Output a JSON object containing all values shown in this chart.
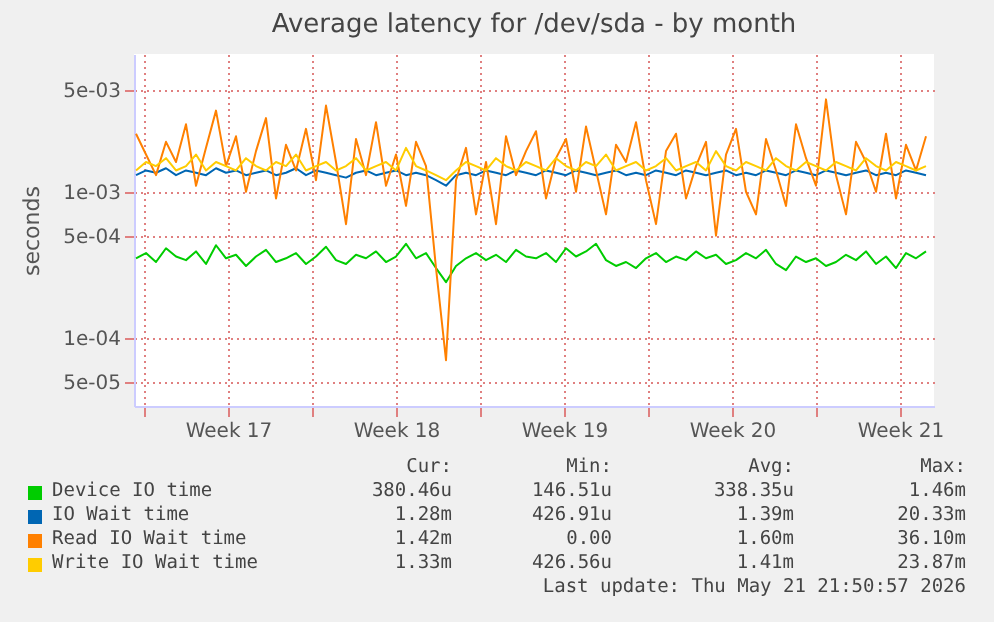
{
  "chart_data": {
    "type": "line",
    "title": "Average latency for /dev/sda - by month",
    "ylabel": "seconds",
    "x": [
      "2026-04-19T16:00",
      "2026-04-20T02:00",
      "2026-04-20T12:00",
      "2026-04-20T22:00",
      "2026-04-21T08:00",
      "2026-04-21T18:00",
      "2026-04-22T04:00",
      "2026-04-22T14:00",
      "2026-04-23T00:00",
      "2026-04-23T10:00",
      "2026-04-23T20:00",
      "2026-04-24T06:00",
      "2026-04-24T16:00",
      "2026-04-25T02:00",
      "2026-04-25T12:00",
      "2026-04-25T22:00",
      "2026-04-26T08:00",
      "2026-04-26T18:00",
      "2026-04-27T04:00",
      "2026-04-27T14:00",
      "2026-04-28T00:00",
      "2026-04-28T10:00",
      "2026-04-28T20:00",
      "2026-04-29T06:00",
      "2026-04-29T16:00",
      "2026-04-30T02:00",
      "2026-04-30T12:00",
      "2026-04-30T22:00",
      "2026-05-01T08:00",
      "2026-05-01T18:00",
      "2026-05-02T04:00",
      "2026-05-02T14:00",
      "2026-05-03T00:00",
      "2026-05-03T10:00",
      "2026-05-03T20:00",
      "2026-05-04T06:00",
      "2026-05-04T16:00",
      "2026-05-05T02:00",
      "2026-05-05T12:00",
      "2026-05-05T22:00",
      "2026-05-06T08:00",
      "2026-05-06T18:00",
      "2026-05-07T04:00",
      "2026-05-07T14:00",
      "2026-05-08T00:00",
      "2026-05-08T10:00",
      "2026-05-08T20:00",
      "2026-05-09T06:00",
      "2026-05-09T16:00",
      "2026-05-10T02:00",
      "2026-05-10T12:00",
      "2026-05-10T22:00",
      "2026-05-11T08:00",
      "2026-05-11T18:00",
      "2026-05-12T04:00",
      "2026-05-12T14:00",
      "2026-05-13T00:00",
      "2026-05-13T10:00",
      "2026-05-13T20:00",
      "2026-05-14T06:00",
      "2026-05-14T16:00",
      "2026-05-15T02:00",
      "2026-05-15T12:00",
      "2026-05-15T22:00",
      "2026-05-16T08:00",
      "2026-05-16T18:00",
      "2026-05-17T04:00",
      "2026-05-17T14:00",
      "2026-05-18T00:00",
      "2026-05-18T10:00",
      "2026-05-18T20:00",
      "2026-05-19T06:00",
      "2026-05-19T16:00",
      "2026-05-20T02:00",
      "2026-05-20T12:00",
      "2026-05-20T22:00",
      "2026-05-21T08:00",
      "2026-05-21T18:00",
      "2026-05-22T04:00",
      "2026-05-22T14:00"
    ],
    "series": [
      {
        "name": "Device IO time",
        "color": "#00cc00",
        "values": [
          0.00035,
          0.00038,
          0.00033,
          0.00041,
          0.00036,
          0.00034,
          0.00039,
          0.00032,
          0.00043,
          0.00035,
          0.00037,
          0.00031,
          0.00036,
          0.0004,
          0.00033,
          0.00035,
          0.00038,
          0.00032,
          0.00036,
          0.00042,
          0.00034,
          0.00032,
          0.00037,
          0.00035,
          0.00039,
          0.00033,
          0.00036,
          0.00044,
          0.00035,
          0.00038,
          0.0003,
          0.00024,
          0.00031,
          0.00035,
          0.00038,
          0.00034,
          0.00037,
          0.00033,
          0.0004,
          0.00036,
          0.00035,
          0.00038,
          0.00033,
          0.00041,
          0.00036,
          0.00039,
          0.00044,
          0.00034,
          0.00031,
          0.00033,
          0.0003,
          0.00035,
          0.00038,
          0.00033,
          0.00036,
          0.00034,
          0.00039,
          0.00035,
          0.00037,
          0.00032,
          0.00034,
          0.00038,
          0.00035,
          0.0004,
          0.00032,
          0.00029,
          0.00036,
          0.00033,
          0.00035,
          0.00031,
          0.00033,
          0.00037,
          0.00034,
          0.00039,
          0.00032,
          0.00036,
          0.0003,
          0.00038,
          0.00035,
          0.00039
        ]
      },
      {
        "name": "IO Wait time",
        "color": "#0066b3",
        "values": [
          0.0013,
          0.0014,
          0.00135,
          0.00145,
          0.0013,
          0.0014,
          0.00135,
          0.0013,
          0.00145,
          0.00135,
          0.0014,
          0.0013,
          0.00135,
          0.0014,
          0.0013,
          0.00135,
          0.00145,
          0.0013,
          0.0014,
          0.00135,
          0.0013,
          0.00125,
          0.00135,
          0.0014,
          0.0013,
          0.00135,
          0.0014,
          0.0013,
          0.00135,
          0.0013,
          0.0012,
          0.0011,
          0.0013,
          0.00135,
          0.0013,
          0.0014,
          0.00135,
          0.0013,
          0.0014,
          0.00135,
          0.0013,
          0.0014,
          0.00135,
          0.0013,
          0.0014,
          0.00135,
          0.0013,
          0.00135,
          0.0014,
          0.0013,
          0.00135,
          0.0013,
          0.0014,
          0.00135,
          0.0013,
          0.0014,
          0.00135,
          0.0013,
          0.00135,
          0.0014,
          0.0013,
          0.00135,
          0.0013,
          0.0014,
          0.00135,
          0.0013,
          0.0014,
          0.00135,
          0.0013,
          0.0014,
          0.00135,
          0.0013,
          0.00135,
          0.0014,
          0.0013,
          0.00135,
          0.0013,
          0.0014,
          0.00135,
          0.0013
        ]
      },
      {
        "name": "Read IO Wait time",
        "color": "#ff8000",
        "values": [
          0.0025,
          0.0018,
          0.0013,
          0.0022,
          0.0016,
          0.0029,
          0.0011,
          0.002,
          0.0036,
          0.0015,
          0.0024,
          0.001,
          0.0019,
          0.0032,
          0.0009,
          0.0021,
          0.0014,
          0.0027,
          0.0012,
          0.0039,
          0.0016,
          0.0006,
          0.0023,
          0.0013,
          0.003,
          0.0011,
          0.0018,
          0.0008,
          0.0022,
          0.0015,
          0.0003,
          7e-05,
          0.0012,
          0.002,
          0.0007,
          0.0016,
          0.0006,
          0.0024,
          0.0013,
          0.0019,
          0.0026,
          0.0009,
          0.0017,
          0.0023,
          0.001,
          0.0028,
          0.0014,
          0.0007,
          0.0021,
          0.0016,
          0.003,
          0.0012,
          0.0006,
          0.0019,
          0.0025,
          0.0009,
          0.0015,
          0.0022,
          0.0005,
          0.0018,
          0.0027,
          0.001,
          0.0007,
          0.0023,
          0.0014,
          0.0008,
          0.0029,
          0.0017,
          0.0011,
          0.0043,
          0.0013,
          0.0007,
          0.0022,
          0.0016,
          0.001,
          0.0025,
          0.0009,
          0.0021,
          0.0014,
          0.0024
        ]
      },
      {
        "name": "Write IO Wait time",
        "color": "#ffcc00",
        "values": [
          0.0014,
          0.0016,
          0.0015,
          0.0017,
          0.0014,
          0.0015,
          0.0018,
          0.0014,
          0.0016,
          0.0015,
          0.0014,
          0.0017,
          0.0015,
          0.0014,
          0.0016,
          0.0015,
          0.0018,
          0.0014,
          0.0015,
          0.0016,
          0.0014,
          0.0015,
          0.0017,
          0.0014,
          0.0015,
          0.0016,
          0.0014,
          0.002,
          0.0015,
          0.0014,
          0.0013,
          0.0012,
          0.0014,
          0.0016,
          0.0015,
          0.0014,
          0.0017,
          0.0015,
          0.0014,
          0.0016,
          0.0015,
          0.0014,
          0.0017,
          0.0015,
          0.0014,
          0.0016,
          0.0015,
          0.0018,
          0.0014,
          0.0015,
          0.0016,
          0.0014,
          0.0015,
          0.0017,
          0.0014,
          0.0015,
          0.0016,
          0.0014,
          0.0019,
          0.0015,
          0.0014,
          0.0016,
          0.0015,
          0.0014,
          0.0017,
          0.0015,
          0.0014,
          0.0016,
          0.0015,
          0.0014,
          0.0016,
          0.0015,
          0.0014,
          0.0017,
          0.0015,
          0.0014,
          0.0016,
          0.0015,
          0.0014,
          0.0015
        ]
      }
    ],
    "xlim": [
      "2026-04-19T14:00",
      "2026-05-22T22:00"
    ],
    "xticks": [
      {
        "value": "2026-04-20T00:00",
        "label": null
      },
      {
        "value": "2026-04-23T12:00",
        "label": "Week 17"
      },
      {
        "value": "2026-04-27T00:00",
        "label": null
      },
      {
        "value": "2026-04-30T12:00",
        "label": "Week 18"
      },
      {
        "value": "2026-05-04T00:00",
        "label": null
      },
      {
        "value": "2026-05-07T12:00",
        "label": "Week 19"
      },
      {
        "value": "2026-05-11T00:00",
        "label": null
      },
      {
        "value": "2026-05-14T12:00",
        "label": "Week 20"
      },
      {
        "value": "2026-05-18T00:00",
        "label": null
      },
      {
        "value": "2026-05-21T12:00",
        "label": "Week 21"
      }
    ],
    "ylim": [
      3.4e-05,
      0.0088
    ],
    "yticks": [
      {
        "value": 5e-05,
        "label": "5e-05"
      },
      {
        "value": 0.0001,
        "label": "1e-04"
      },
      {
        "value": 0.0005,
        "label": "5e-04"
      },
      {
        "value": 0.001,
        "label": "1e-03"
      },
      {
        "value": 0.005,
        "label": "5e-03"
      }
    ],
    "log": true,
    "grid": true,
    "legend": "bottom",
    "annotations": [
      "Cur:",
      "Min:",
      "Avg:",
      "Max:",
      "380.46u",
      "146.51u",
      "338.35u",
      "1.46m",
      "1.28m",
      "426.91u",
      "1.39m",
      "20.33m",
      "1.42m",
      "0.00",
      "1.60m",
      "36.10m",
      "1.33m",
      "426.56u",
      "1.41m",
      "23.87m",
      "Last update: Thu May 21 21:50:57 2026"
    ]
  }
}
